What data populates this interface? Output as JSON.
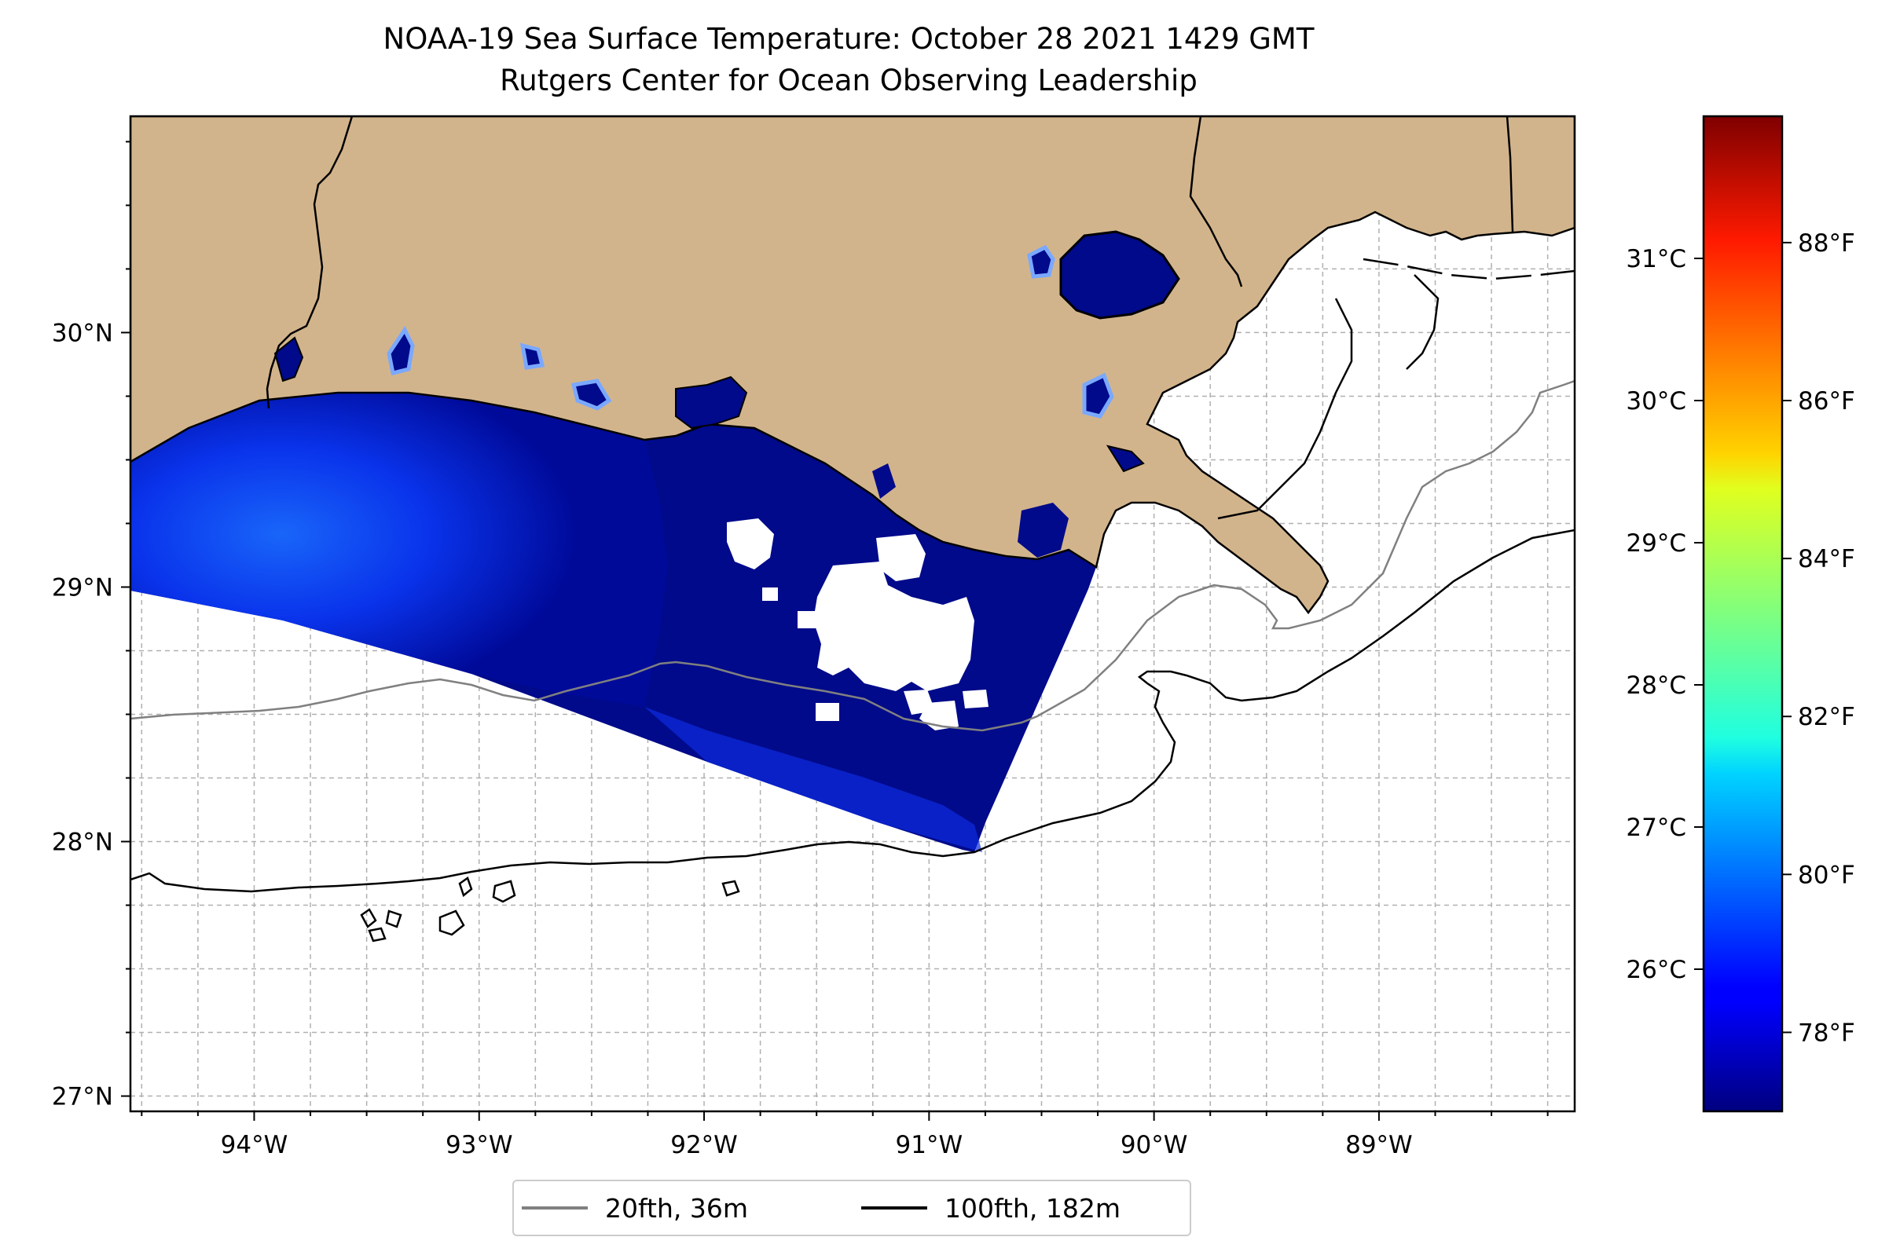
{
  "title": {
    "line1": "NOAA-19 Sea Surface Temperature: October 28 2021 1429 GMT",
    "line2": "Rutgers Center for Ocean Observing Leadership"
  },
  "map": {
    "lon_labels": [
      "94°W",
      "93°W",
      "92°W",
      "91°W",
      "90°W",
      "89°W"
    ],
    "lat_labels": [
      "30°N",
      "29°N",
      "28°N",
      "27°N"
    ],
    "lon_range": [
      -94.55,
      -88.13
    ],
    "lat_range": [
      26.94,
      30.85
    ],
    "grid": true,
    "land_color": "#d2b48c",
    "ocean_color": "#ffffff",
    "sst_low_color": "#00008b"
  },
  "colorbar": {
    "celsius_labels": [
      "31°C",
      "30°C",
      "29°C",
      "28°C",
      "27°C",
      "26°C"
    ],
    "fahrenheit_labels": [
      "88°F",
      "86°F",
      "84°F",
      "82°F",
      "80°F",
      "78°F"
    ],
    "colormap": "jet",
    "range_f": [
      77.0,
      89.6
    ]
  },
  "legend": {
    "items": [
      {
        "label": "20fth, 36m",
        "color": "#808080"
      },
      {
        "label": "100fth, 182m",
        "color": "#000000"
      }
    ]
  }
}
